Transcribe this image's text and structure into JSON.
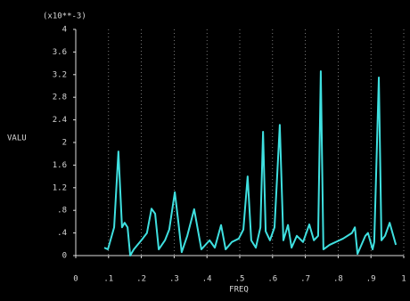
{
  "chart_data": {
    "type": "line",
    "annotation": "(x10**-3)",
    "y_label": "VALU",
    "x_label": "FREQ",
    "color": "#3fe0e0",
    "grid": "x",
    "xlim": [
      0,
      1
    ],
    "ylim": [
      0,
      4
    ],
    "xticks": [
      0,
      {
        "value": 0.1,
        "label": ".1"
      },
      {
        "value": 0.2,
        "label": ".2"
      },
      {
        "value": 0.3,
        "label": ".3"
      },
      {
        "value": 0.4,
        "label": ".4"
      },
      {
        "value": 0.5,
        "label": ".5"
      },
      {
        "value": 0.6,
        "label": ".6"
      },
      {
        "value": 0.7,
        "label": ".7"
      },
      {
        "value": 0.8,
        "label": ".8"
      },
      {
        "value": 0.9,
        "label": ".9"
      },
      1
    ],
    "yticks": [
      0,
      {
        "value": 0.4,
        "label": ".4"
      },
      {
        "value": 0.8,
        "label": ".8"
      },
      1.2,
      1.6,
      2,
      2.4,
      2.8,
      3.2,
      3.6,
      4
    ],
    "x": [
      0.087,
      0.098,
      0.117,
      0.13,
      0.141,
      0.149,
      0.158,
      0.166,
      0.177,
      0.204,
      0.217,
      0.231,
      0.242,
      0.253,
      0.272,
      0.285,
      0.302,
      0.313,
      0.323,
      0.34,
      0.361,
      0.383,
      0.408,
      0.424,
      0.443,
      0.457,
      0.476,
      0.497,
      0.511,
      0.524,
      0.535,
      0.549,
      0.563,
      0.571,
      0.579,
      0.592,
      0.606,
      0.622,
      0.633,
      0.647,
      0.658,
      0.674,
      0.693,
      0.712,
      0.726,
      0.739,
      0.747,
      0.755,
      0.774,
      0.815,
      0.842,
      0.851,
      0.859,
      0.883,
      0.891,
      0.905,
      0.91,
      0.924,
      0.932,
      0.943,
      0.957,
      0.976
    ],
    "values": [
      0.14,
      0.11,
      0.5,
      1.84,
      0.5,
      0.58,
      0.5,
      0,
      0.11,
      0.3,
      0.4,
      0.83,
      0.74,
      0.11,
      0.27,
      0.46,
      1.12,
      0.58,
      0.06,
      0.35,
      0.82,
      0.11,
      0.27,
      0.14,
      0.54,
      0.11,
      0.24,
      0.3,
      0.46,
      1.4,
      0.27,
      0.14,
      0.5,
      2.19,
      0.43,
      0.27,
      0.5,
      2.31,
      0.27,
      0.54,
      0.14,
      0.35,
      0.24,
      0.55,
      0.27,
      0.35,
      3.26,
      0.11,
      0.19,
      0.3,
      0.4,
      0.5,
      0.03,
      0.35,
      0.4,
      0.11,
      0.24,
      3.15,
      0.27,
      0.35,
      0.58,
      0.19
    ]
  }
}
